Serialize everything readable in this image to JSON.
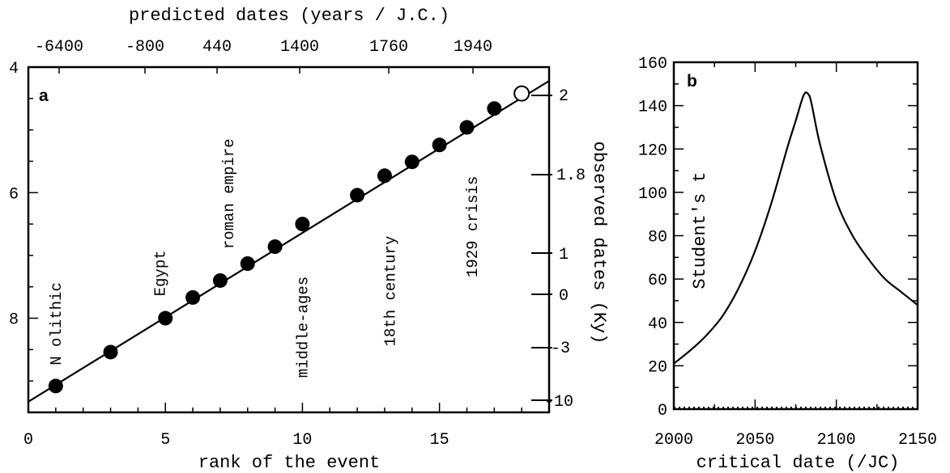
{
  "chart_data": [
    {
      "type": "scatter",
      "panel_label": "a",
      "xlabel": "rank of the event",
      "top_xlabel": "predicted dates (years / J.C.)",
      "right_ylabel": "observed dates (Ky)",
      "xlim": [
        0,
        19
      ],
      "ylim": [
        9.5,
        4
      ],
      "y_reversed": true,
      "x_ticks": [
        "0",
        "5",
        "10",
        "15"
      ],
      "y_ticks": [
        "4",
        "6",
        "8"
      ],
      "top_ticks": [
        "-6400",
        "-800",
        "440",
        "1400",
        "1760",
        "1940"
      ],
      "right_ticks": [
        "2",
        "1.8",
        "1",
        "0",
        "-3",
        "-10"
      ],
      "points": [
        {
          "x": 1,
          "y": 9.08
        },
        {
          "x": 3,
          "y": 8.54
        },
        {
          "x": 5,
          "y": 8.0
        },
        {
          "x": 6,
          "y": 7.67
        },
        {
          "x": 7,
          "y": 7.4
        },
        {
          "x": 8,
          "y": 7.13
        },
        {
          "x": 9,
          "y": 6.86
        },
        {
          "x": 10,
          "y": 6.5
        },
        {
          "x": 12,
          "y": 6.04
        },
        {
          "x": 13,
          "y": 5.73
        },
        {
          "x": 14,
          "y": 5.51
        },
        {
          "x": 15,
          "y": 5.24
        },
        {
          "x": 16,
          "y": 4.96
        },
        {
          "x": 17,
          "y": 4.66
        }
      ],
      "predicted_point": {
        "x": 18,
        "y": 4.42
      },
      "fit_line": {
        "x": [
          0,
          19
        ],
        "y": [
          9.33,
          4.22
        ]
      },
      "annotations": [
        {
          "text": "N olithic",
          "x": 1,
          "y": 8.75
        },
        {
          "text": "Egypt",
          "x": 4.8,
          "y": 7.65
        },
        {
          "text": "roman empire",
          "x": 7.3,
          "y": 6.9
        },
        {
          "text": "middle-ages",
          "x": 10,
          "y": 8.95
        },
        {
          "text": "18th century",
          "x": 13.2,
          "y": 8.45
        },
        {
          "text": "1929 crisis",
          "x": 16.2,
          "y": 7.35
        }
      ]
    },
    {
      "type": "line",
      "panel_label": "b",
      "xlabel": "critical date (/JC)",
      "ylabel": "Student's t",
      "xlim": [
        2000,
        2150
      ],
      "ylim": [
        0,
        160
      ],
      "x_ticks": [
        "2000",
        "2050",
        "2100",
        "2150"
      ],
      "y_ticks": [
        "0",
        "20",
        "40",
        "60",
        "80",
        "100",
        "120",
        "140",
        "160"
      ],
      "series": [
        {
          "x": [
            2000,
            2010,
            2020,
            2030,
            2040,
            2050,
            2060,
            2070,
            2075,
            2080,
            2083,
            2085,
            2090,
            2100,
            2110,
            2120,
            2130,
            2140,
            2150
          ],
          "y": [
            21,
            27,
            34,
            43,
            56,
            73,
            95,
            121,
            133,
            145,
            145,
            140,
            122,
            96,
            80,
            69,
            60,
            54,
            48
          ]
        }
      ],
      "baseline_dotted": 0
    }
  ]
}
